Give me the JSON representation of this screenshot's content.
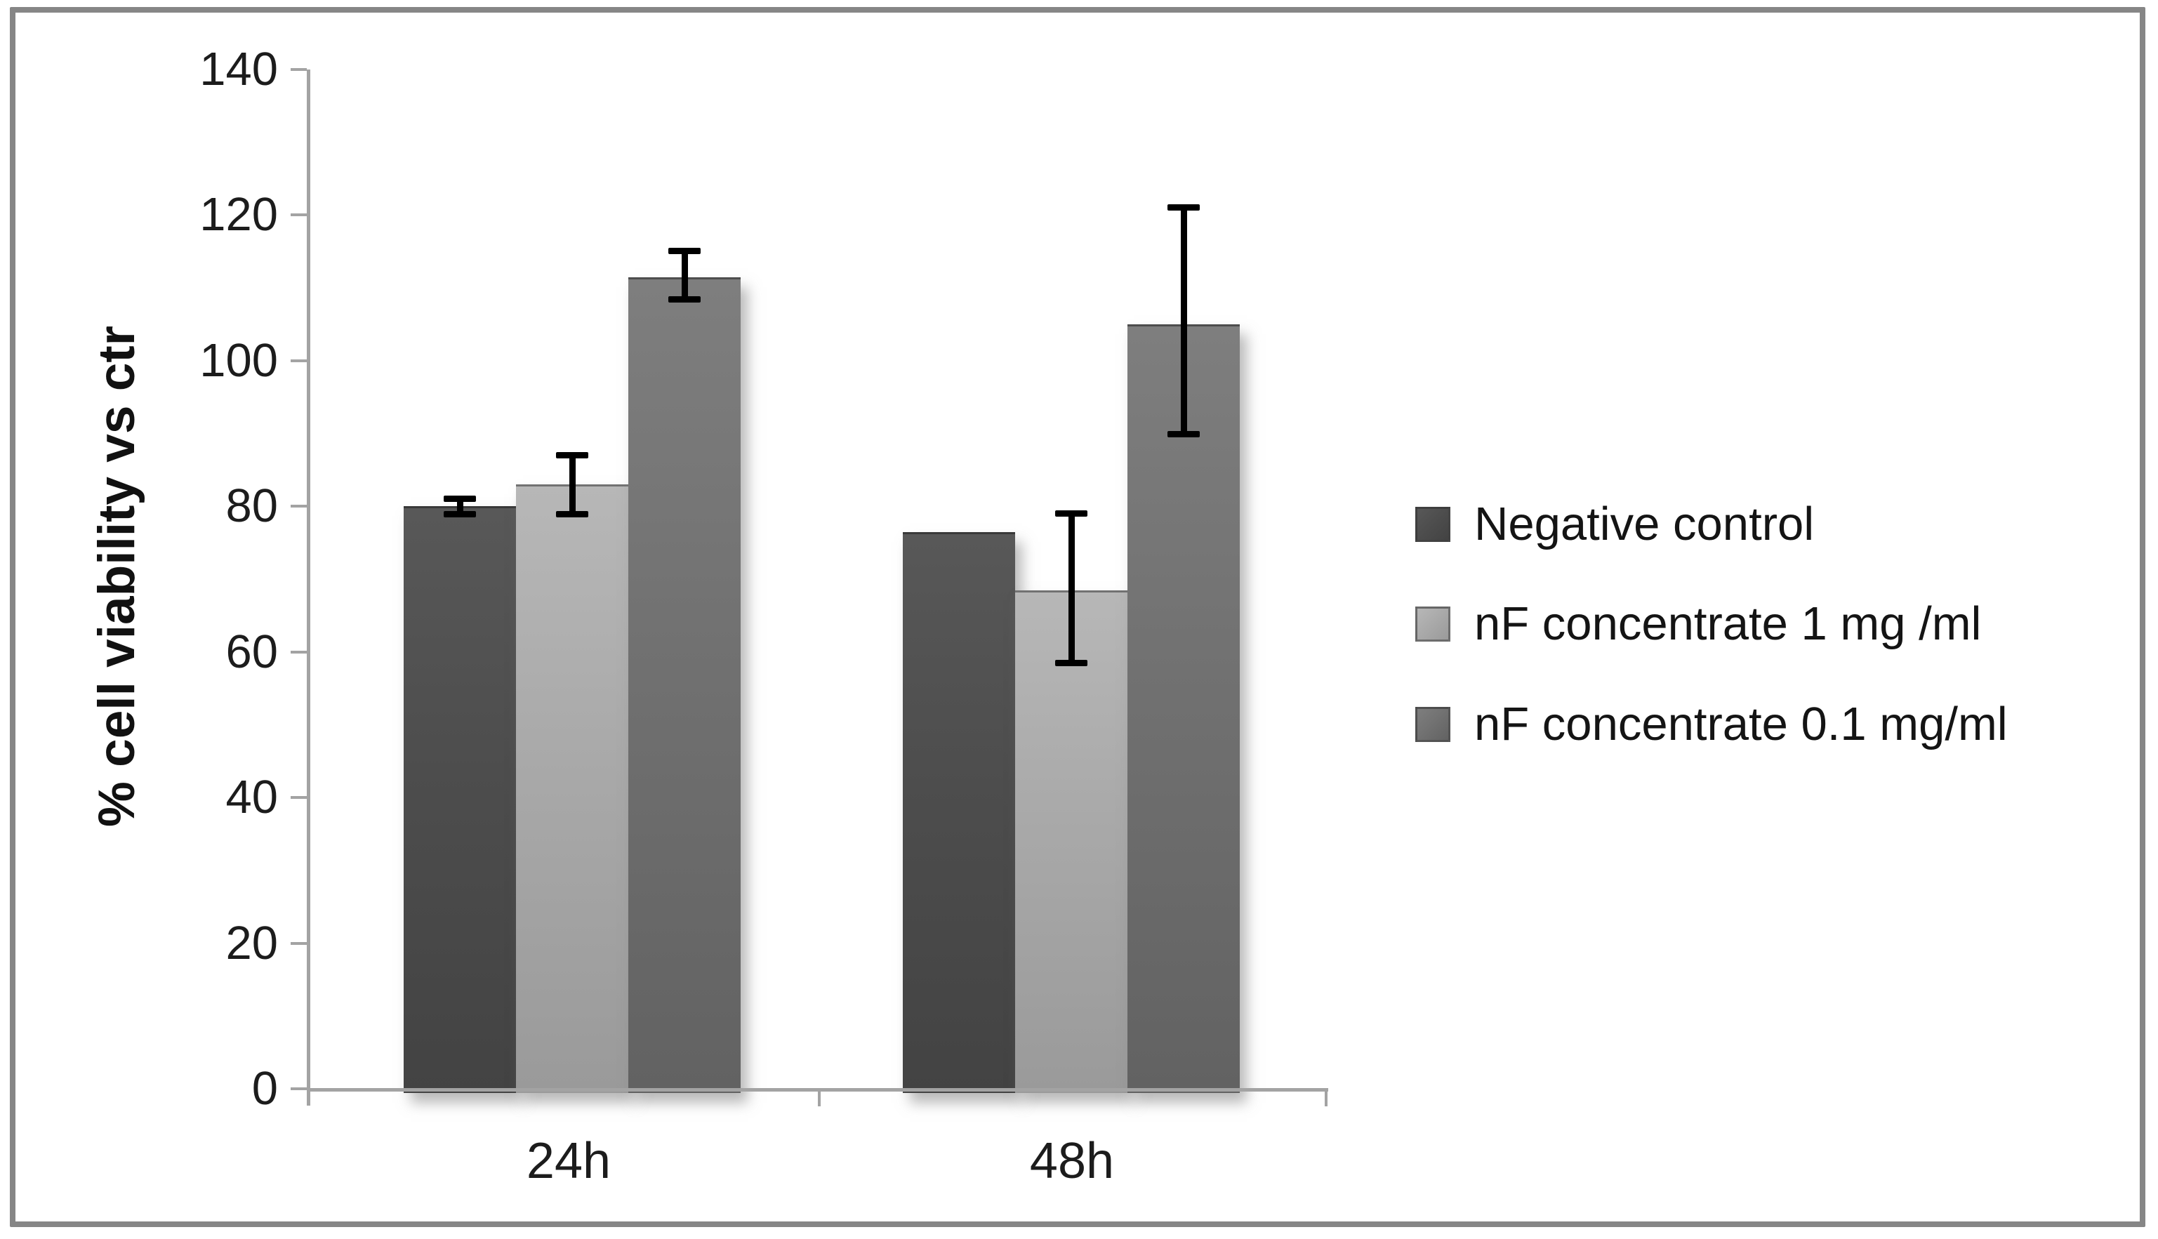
{
  "chart_data": {
    "type": "bar",
    "title": "",
    "ylabel": "% cell viability vs ctr",
    "xlabel": "",
    "categories": [
      "24h",
      "48h"
    ],
    "ylim": [
      0,
      140
    ],
    "yticks": [
      0,
      20,
      40,
      60,
      80,
      100,
      120,
      140
    ],
    "grid": false,
    "legend_position": "right",
    "series": [
      {
        "name": "Negative control",
        "color": "#4d4d4d",
        "color_top": "#585858",
        "color_bottom": "#434343",
        "values": [
          80,
          76.5
        ],
        "error_high": [
          81,
          null
        ],
        "error_low": [
          79,
          null
        ]
      },
      {
        "name": "nF concentrate 1 mg /ml",
        "color": "#a9a9a9",
        "color_top": "#b7b7b7",
        "color_bottom": "#9a9a9a",
        "values": [
          83,
          68.5
        ],
        "error_high": [
          87,
          79
        ],
        "error_low": [
          79,
          58.5
        ]
      },
      {
        "name": "nF concentrate 0.1 mg/ml",
        "color": "#717171",
        "color_top": "#7e7e7e",
        "color_bottom": "#626262",
        "values": [
          111.5,
          105
        ],
        "error_high": [
          115,
          121
        ],
        "error_low": [
          108.5,
          90
        ]
      }
    ]
  }
}
